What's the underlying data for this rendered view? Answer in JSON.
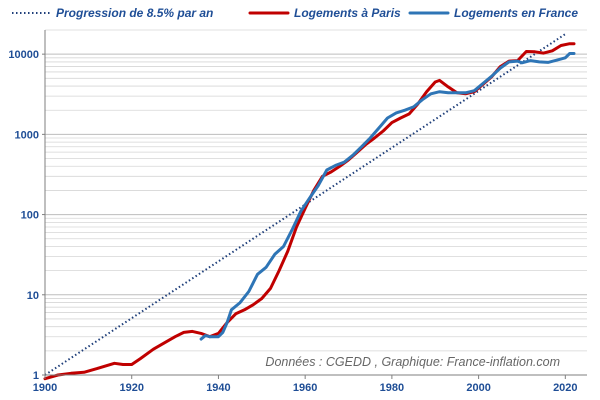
{
  "chart_data": {
    "type": "line",
    "yscale": "log",
    "ylim": [
      1,
      20000
    ],
    "xlim": [
      1900,
      2025
    ],
    "x_ticks": [
      "1900",
      "1920",
      "1940",
      "1960",
      "1980",
      "2000",
      "2020"
    ],
    "y_ticks": [
      "1",
      "10",
      "100",
      "1000",
      "10000"
    ],
    "grid": "horizontal minor log lines",
    "legend": "top",
    "credit": "Données : CGEDD , Graphique: France-inflation.com",
    "colors": {
      "trend": "#1f3f7a",
      "paris": "#c00000",
      "france": "#2e75b6",
      "axis_text": "#1f4e96"
    },
    "series": [
      {
        "name": "Progression de 8.5% par an",
        "style": "dotted",
        "points": [
          [
            1900,
            1
          ],
          [
            2020,
            17800
          ]
        ]
      },
      {
        "name": "Logements à Paris",
        "style": "solid",
        "points": [
          [
            1900,
            0.9
          ],
          [
            1903,
            1.0
          ],
          [
            1906,
            1.05
          ],
          [
            1909,
            1.08
          ],
          [
            1912,
            1.2
          ],
          [
            1914,
            1.3
          ],
          [
            1916,
            1.4
          ],
          [
            1918,
            1.35
          ],
          [
            1920,
            1.35
          ],
          [
            1922,
            1.6
          ],
          [
            1925,
            2.1
          ],
          [
            1928,
            2.6
          ],
          [
            1930,
            3.0
          ],
          [
            1932,
            3.4
          ],
          [
            1934,
            3.5
          ],
          [
            1936,
            3.3
          ],
          [
            1938,
            3.0
          ],
          [
            1940,
            3.3
          ],
          [
            1942,
            4.5
          ],
          [
            1944,
            5.8
          ],
          [
            1946,
            6.5
          ],
          [
            1948,
            7.5
          ],
          [
            1950,
            9.0
          ],
          [
            1952,
            12
          ],
          [
            1954,
            20
          ],
          [
            1956,
            35
          ],
          [
            1958,
            70
          ],
          [
            1960,
            120
          ],
          [
            1962,
            200
          ],
          [
            1964,
            300
          ],
          [
            1966,
            340
          ],
          [
            1968,
            400
          ],
          [
            1970,
            480
          ],
          [
            1972,
            600
          ],
          [
            1974,
            750
          ],
          [
            1976,
            900
          ],
          [
            1978,
            1100
          ],
          [
            1980,
            1400
          ],
          [
            1982,
            1600
          ],
          [
            1984,
            1800
          ],
          [
            1986,
            2400
          ],
          [
            1988,
            3400
          ],
          [
            1990,
            4500
          ],
          [
            1991,
            4700
          ],
          [
            1993,
            3900
          ],
          [
            1995,
            3300
          ],
          [
            1997,
            3200
          ],
          [
            1999,
            3400
          ],
          [
            2001,
            4200
          ],
          [
            2003,
            5200
          ],
          [
            2005,
            7000
          ],
          [
            2007,
            8200
          ],
          [
            2009,
            8300
          ],
          [
            2011,
            10800
          ],
          [
            2013,
            10700
          ],
          [
            2015,
            10300
          ],
          [
            2017,
            11000
          ],
          [
            2019,
            12800
          ],
          [
            2021,
            13500
          ],
          [
            2022,
            13500
          ]
        ]
      },
      {
        "name": "Logements en France",
        "style": "solid",
        "points": [
          [
            1936,
            2.8
          ],
          [
            1937,
            3.1
          ],
          [
            1938,
            3.0
          ],
          [
            1940,
            3.0
          ],
          [
            1941,
            3.4
          ],
          [
            1942,
            4.5
          ],
          [
            1943,
            6.5
          ],
          [
            1945,
            8.0
          ],
          [
            1947,
            11
          ],
          [
            1949,
            18
          ],
          [
            1951,
            22
          ],
          [
            1953,
            32
          ],
          [
            1955,
            40
          ],
          [
            1957,
            65
          ],
          [
            1959,
            110
          ],
          [
            1961,
            160
          ],
          [
            1963,
            230
          ],
          [
            1965,
            360
          ],
          [
            1967,
            410
          ],
          [
            1969,
            450
          ],
          [
            1971,
            550
          ],
          [
            1973,
            700
          ],
          [
            1975,
            900
          ],
          [
            1977,
            1200
          ],
          [
            1979,
            1600
          ],
          [
            1981,
            1850
          ],
          [
            1983,
            2000
          ],
          [
            1985,
            2200
          ],
          [
            1987,
            2700
          ],
          [
            1989,
            3200
          ],
          [
            1991,
            3400
          ],
          [
            1993,
            3300
          ],
          [
            1995,
            3300
          ],
          [
            1997,
            3300
          ],
          [
            1999,
            3500
          ],
          [
            2001,
            4300
          ],
          [
            2003,
            5300
          ],
          [
            2005,
            6700
          ],
          [
            2007,
            8000
          ],
          [
            2009,
            8200
          ],
          [
            2010,
            7800
          ],
          [
            2012,
            8300
          ],
          [
            2014,
            8000
          ],
          [
            2016,
            7900
          ],
          [
            2018,
            8400
          ],
          [
            2020,
            9000
          ],
          [
            2021,
            10200
          ],
          [
            2022,
            10200
          ]
        ]
      }
    ]
  }
}
